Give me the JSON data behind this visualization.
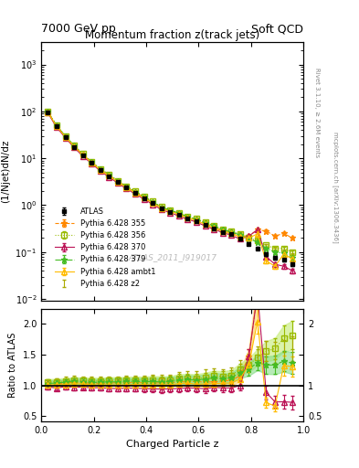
{
  "title_top_left": "7000 GeV pp",
  "title_top_right": "Soft QCD",
  "main_title": "Momentum fraction z(track jets)",
  "ylabel_main": "(1/Njet)dN/dz",
  "ylabel_ratio": "Ratio to ATLAS",
  "xlabel": "Charged Particle z",
  "right_label_top": "Rivet 3.1.10, ≥ 2.6M events",
  "right_label_bottom": "mcplots.cern.ch [arXiv:1306.3436]",
  "watermark": "ATLAS_2011_I919017",
  "atlas_label": "ATLAS",
  "x_atlas": [
    0.025,
    0.058,
    0.092,
    0.125,
    0.158,
    0.192,
    0.225,
    0.258,
    0.292,
    0.325,
    0.358,
    0.392,
    0.425,
    0.458,
    0.492,
    0.525,
    0.558,
    0.592,
    0.625,
    0.658,
    0.692,
    0.725,
    0.758,
    0.792,
    0.825,
    0.858,
    0.892,
    0.925,
    0.958
  ],
  "y_atlas": [
    95.0,
    48.0,
    28.0,
    17.5,
    11.5,
    8.0,
    5.6,
    4.2,
    3.1,
    2.35,
    1.82,
    1.42,
    1.1,
    0.86,
    0.73,
    0.62,
    0.52,
    0.46,
    0.38,
    0.32,
    0.27,
    0.24,
    0.19,
    0.15,
    0.12,
    0.09,
    0.075,
    0.068,
    0.055
  ],
  "y_atlas_err": [
    2.5,
    1.3,
    0.8,
    0.5,
    0.35,
    0.25,
    0.18,
    0.13,
    0.1,
    0.08,
    0.06,
    0.05,
    0.04,
    0.035,
    0.03,
    0.025,
    0.022,
    0.02,
    0.017,
    0.015,
    0.013,
    0.012,
    0.01,
    0.009,
    0.008,
    0.007,
    0.006,
    0.006,
    0.005
  ],
  "series": [
    {
      "label": "Pythia 6.428 355",
      "color": "#ff8800",
      "linestyle": "--",
      "marker": "*",
      "markersize": 5,
      "markerfacecolor": "#ff8800",
      "x": [
        0.025,
        0.058,
        0.092,
        0.125,
        0.158,
        0.192,
        0.225,
        0.258,
        0.292,
        0.325,
        0.358,
        0.392,
        0.425,
        0.458,
        0.492,
        0.525,
        0.558,
        0.592,
        0.625,
        0.658,
        0.692,
        0.725,
        0.758,
        0.792,
        0.825,
        0.858,
        0.892,
        0.925,
        0.958
      ],
      "y": [
        99.0,
        49.5,
        29.0,
        18.5,
        12.0,
        8.3,
        5.8,
        4.35,
        3.25,
        2.45,
        1.91,
        1.48,
        1.14,
        0.9,
        0.76,
        0.66,
        0.55,
        0.49,
        0.4,
        0.34,
        0.29,
        0.26,
        0.22,
        0.22,
        0.3,
        0.28,
        0.22,
        0.25,
        0.2
      ],
      "yerr": [
        3.5,
        1.8,
        1.0,
        0.65,
        0.42,
        0.3,
        0.21,
        0.16,
        0.12,
        0.09,
        0.07,
        0.06,
        0.05,
        0.04,
        0.035,
        0.03,
        0.026,
        0.024,
        0.02,
        0.018,
        0.015,
        0.014,
        0.013,
        0.014,
        0.022,
        0.02,
        0.016,
        0.018,
        0.015
      ]
    },
    {
      "label": "Pythia 6.428 356",
      "color": "#99bb00",
      "linestyle": ":",
      "marker": "s",
      "markersize": 4,
      "markerfacecolor": "none",
      "x": [
        0.025,
        0.058,
        0.092,
        0.125,
        0.158,
        0.192,
        0.225,
        0.258,
        0.292,
        0.325,
        0.358,
        0.392,
        0.425,
        0.458,
        0.492,
        0.525,
        0.558,
        0.592,
        0.625,
        0.658,
        0.692,
        0.725,
        0.758,
        0.792,
        0.825,
        0.858,
        0.892,
        0.925,
        0.958
      ],
      "y": [
        100.0,
        51.0,
        30.0,
        19.0,
        12.4,
        8.6,
        6.0,
        4.55,
        3.35,
        2.55,
        1.98,
        1.54,
        1.2,
        0.93,
        0.79,
        0.69,
        0.58,
        0.51,
        0.43,
        0.37,
        0.31,
        0.28,
        0.24,
        0.2,
        0.175,
        0.14,
        0.12,
        0.12,
        0.1
      ],
      "yerr": [
        3.8,
        1.9,
        1.05,
        0.68,
        0.44,
        0.32,
        0.22,
        0.17,
        0.13,
        0.1,
        0.08,
        0.065,
        0.055,
        0.045,
        0.04,
        0.035,
        0.03,
        0.026,
        0.022,
        0.02,
        0.017,
        0.015,
        0.013,
        0.012,
        0.011,
        0.01,
        0.009,
        0.01,
        0.009
      ]
    },
    {
      "label": "Pythia 6.428 370",
      "color": "#bb1155",
      "linestyle": "-",
      "marker": "^",
      "markersize": 4,
      "markerfacecolor": "none",
      "x": [
        0.025,
        0.058,
        0.092,
        0.125,
        0.158,
        0.192,
        0.225,
        0.258,
        0.292,
        0.325,
        0.358,
        0.392,
        0.425,
        0.458,
        0.492,
        0.525,
        0.558,
        0.592,
        0.625,
        0.658,
        0.692,
        0.725,
        0.758,
        0.792,
        0.825,
        0.858,
        0.892,
        0.925,
        0.958
      ],
      "y": [
        93.0,
        46.0,
        27.5,
        17.0,
        11.2,
        7.7,
        5.4,
        4.0,
        2.95,
        2.25,
        1.74,
        1.35,
        1.04,
        0.81,
        0.69,
        0.59,
        0.5,
        0.44,
        0.36,
        0.31,
        0.26,
        0.23,
        0.19,
        0.22,
        0.3,
        0.08,
        0.055,
        0.05,
        0.04
      ],
      "yerr": [
        3.2,
        1.6,
        0.95,
        0.6,
        0.38,
        0.27,
        0.19,
        0.14,
        0.11,
        0.08,
        0.065,
        0.055,
        0.045,
        0.038,
        0.032,
        0.028,
        0.024,
        0.021,
        0.018,
        0.016,
        0.014,
        0.012,
        0.011,
        0.014,
        0.022,
        0.008,
        0.006,
        0.006,
        0.005
      ]
    },
    {
      "label": "Pythia 6.428 379",
      "color": "#44bb22",
      "linestyle": "-.",
      "marker": "*",
      "markersize": 5,
      "markerfacecolor": "#44bb22",
      "x": [
        0.025,
        0.058,
        0.092,
        0.125,
        0.158,
        0.192,
        0.225,
        0.258,
        0.292,
        0.325,
        0.358,
        0.392,
        0.425,
        0.458,
        0.492,
        0.525,
        0.558,
        0.592,
        0.625,
        0.658,
        0.692,
        0.725,
        0.758,
        0.792,
        0.825,
        0.858,
        0.892,
        0.925,
        0.958
      ],
      "y": [
        98.0,
        50.0,
        29.5,
        18.8,
        12.2,
        8.4,
        5.9,
        4.45,
        3.28,
        2.5,
        1.94,
        1.51,
        1.17,
        0.91,
        0.78,
        0.67,
        0.57,
        0.5,
        0.42,
        0.36,
        0.3,
        0.27,
        0.23,
        0.19,
        0.165,
        0.12,
        0.1,
        0.095,
        0.075
      ],
      "yerr": [
        3.7,
        1.85,
        1.02,
        0.67,
        0.43,
        0.31,
        0.22,
        0.17,
        0.13,
        0.1,
        0.08,
        0.064,
        0.054,
        0.044,
        0.039,
        0.033,
        0.029,
        0.025,
        0.021,
        0.019,
        0.016,
        0.014,
        0.013,
        0.011,
        0.01,
        0.009,
        0.008,
        0.008,
        0.007
      ]
    },
    {
      "label": "Pythia 6.428 ambt1",
      "color": "#ffbb00",
      "linestyle": "-",
      "marker": "^",
      "markersize": 4,
      "markerfacecolor": "none",
      "x": [
        0.025,
        0.058,
        0.092,
        0.125,
        0.158,
        0.192,
        0.225,
        0.258,
        0.292,
        0.325,
        0.358,
        0.392,
        0.425,
        0.458,
        0.492,
        0.525,
        0.558,
        0.592,
        0.625,
        0.658,
        0.692,
        0.725,
        0.758,
        0.792,
        0.825,
        0.858,
        0.892,
        0.925,
        0.958
      ],
      "y": [
        96.0,
        48.5,
        28.5,
        18.0,
        11.8,
        8.1,
        5.65,
        4.25,
        3.12,
        2.38,
        1.85,
        1.44,
        1.11,
        0.87,
        0.74,
        0.64,
        0.54,
        0.47,
        0.39,
        0.33,
        0.28,
        0.25,
        0.21,
        0.2,
        0.245,
        0.065,
        0.05,
        0.09,
        0.072
      ],
      "yerr": [
        3.4,
        1.7,
        0.98,
        0.63,
        0.41,
        0.29,
        0.2,
        0.15,
        0.11,
        0.09,
        0.07,
        0.06,
        0.05,
        0.041,
        0.034,
        0.03,
        0.026,
        0.023,
        0.019,
        0.017,
        0.015,
        0.013,
        0.012,
        0.013,
        0.018,
        0.006,
        0.005,
        0.008,
        0.006
      ]
    },
    {
      "label": "Pythia 6.428 z2",
      "color": "#aaaa00",
      "linestyle": "-",
      "marker": null,
      "markersize": 0,
      "markerfacecolor": "#aaaa00",
      "x": [
        0.025,
        0.058,
        0.092,
        0.125,
        0.158,
        0.192,
        0.225,
        0.258,
        0.292,
        0.325,
        0.358,
        0.392,
        0.425,
        0.458,
        0.492,
        0.525,
        0.558,
        0.592,
        0.625,
        0.658,
        0.692,
        0.725,
        0.758,
        0.792,
        0.825,
        0.858,
        0.892,
        0.925,
        0.958
      ],
      "y": [
        100.0,
        51.0,
        30.5,
        19.3,
        12.5,
        8.7,
        6.1,
        4.6,
        3.4,
        2.6,
        2.02,
        1.57,
        1.22,
        0.95,
        0.81,
        0.71,
        0.6,
        0.53,
        0.45,
        0.38,
        0.32,
        0.29,
        0.25,
        0.21,
        0.18,
        0.14,
        0.115,
        0.105,
        0.088
      ],
      "yerr": [
        3.9,
        1.95,
        1.08,
        0.7,
        0.46,
        0.33,
        0.23,
        0.17,
        0.13,
        0.1,
        0.08,
        0.066,
        0.056,
        0.046,
        0.041,
        0.036,
        0.031,
        0.027,
        0.023,
        0.02,
        0.017,
        0.015,
        0.014,
        0.012,
        0.011,
        0.01,
        0.009,
        0.009,
        0.008
      ]
    }
  ],
  "band_355_color": "#ffdd88",
  "band_356_color": "#ccee88",
  "band_379_color": "#88dd88",
  "ylim_main": [
    0.009,
    3000
  ],
  "ylim_ratio": [
    0.42,
    2.25
  ],
  "xlim": [
    0.0,
    1.0
  ]
}
